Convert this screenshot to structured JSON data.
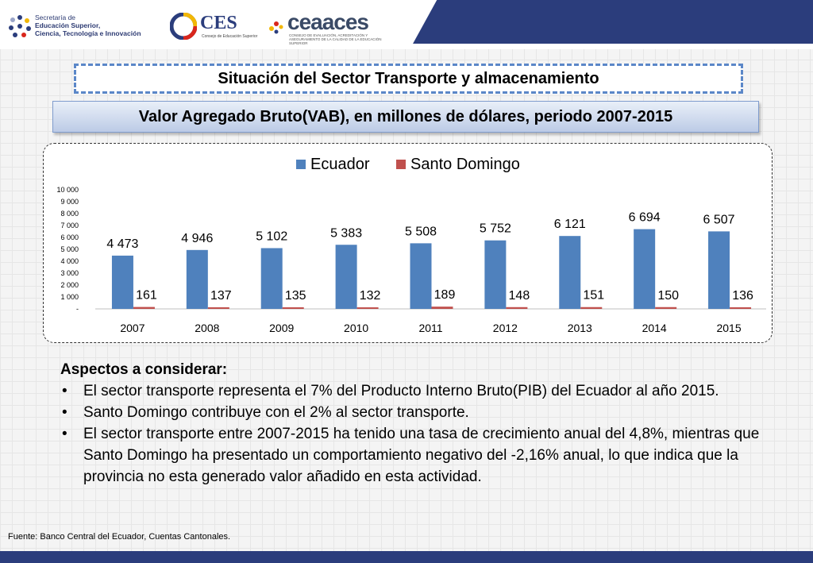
{
  "header": {
    "senescyt_lines": [
      "Secretaría de",
      "Educación Superior,",
      "Ciencia, Tecnología e Innovación"
    ],
    "ces_label": "CES",
    "ces_subtitle": "Consejo de Educación Superior",
    "ceaaces_label": "ceaaces",
    "ceaaces_subtitle": "CONSEJO DE EVALUACIÓN, ACREDITACIÓN Y ASEGURAMIENTO DE LA CALIDAD DE LA EDUCACIÓN SUPERIOR",
    "colors": {
      "navy": "#2b3d7c"
    }
  },
  "title": "Situación del Sector Transporte y almacenamiento",
  "subtitle": "Valor Agregado Bruto(VAB), en millones de dólares, periodo 2007-2015",
  "chart_data": {
    "type": "bar",
    "categories": [
      "2007",
      "2008",
      "2009",
      "2010",
      "2011",
      "2012",
      "2013",
      "2014",
      "2015"
    ],
    "series": [
      {
        "name": "Ecuador",
        "color": "#4f81bd",
        "values": [
          4473,
          4946,
          5102,
          5383,
          5508,
          5752,
          6121,
          6694,
          6507
        ],
        "labels": [
          "4 473",
          "4 946",
          "5 102",
          "5 383",
          "5 508",
          "5 752",
          "6 121",
          "6 694",
          "6 507"
        ]
      },
      {
        "name": "Santo Domingo",
        "color": "#c0504d",
        "values": [
          161,
          137,
          135,
          132,
          189,
          148,
          151,
          150,
          136
        ],
        "labels": [
          "161",
          "137",
          "135",
          "132",
          "189",
          "148",
          "151",
          "150",
          "136"
        ]
      }
    ],
    "ylim": [
      0,
      10000
    ],
    "yticks": [
      "-",
      "1 000",
      "2 000",
      "3 000",
      "4 000",
      "5 000",
      "6 000",
      "7 000",
      "8 000",
      "9 000",
      "10 000"
    ],
    "legend": "top",
    "grid": false
  },
  "notes": {
    "heading": "Aspectos a considerar:",
    "bullet_symbol": "•",
    "items": [
      "El sector transporte representa el 7% del Producto Interno Bruto(PIB) del Ecuador al año 2015.",
      "Santo Domingo contribuye con el 2% al sector transporte.",
      "El sector transporte entre 2007-2015 ha tenido una tasa de crecimiento anual del 4,8%, mientras que Santo Domingo ha presentado un comportamiento negativo del -2,16% anual, lo que indica que la provincia no esta generado valor añadido en esta actividad."
    ]
  },
  "source": "Fuente: Banco Central del Ecuador, Cuentas Cantonales."
}
